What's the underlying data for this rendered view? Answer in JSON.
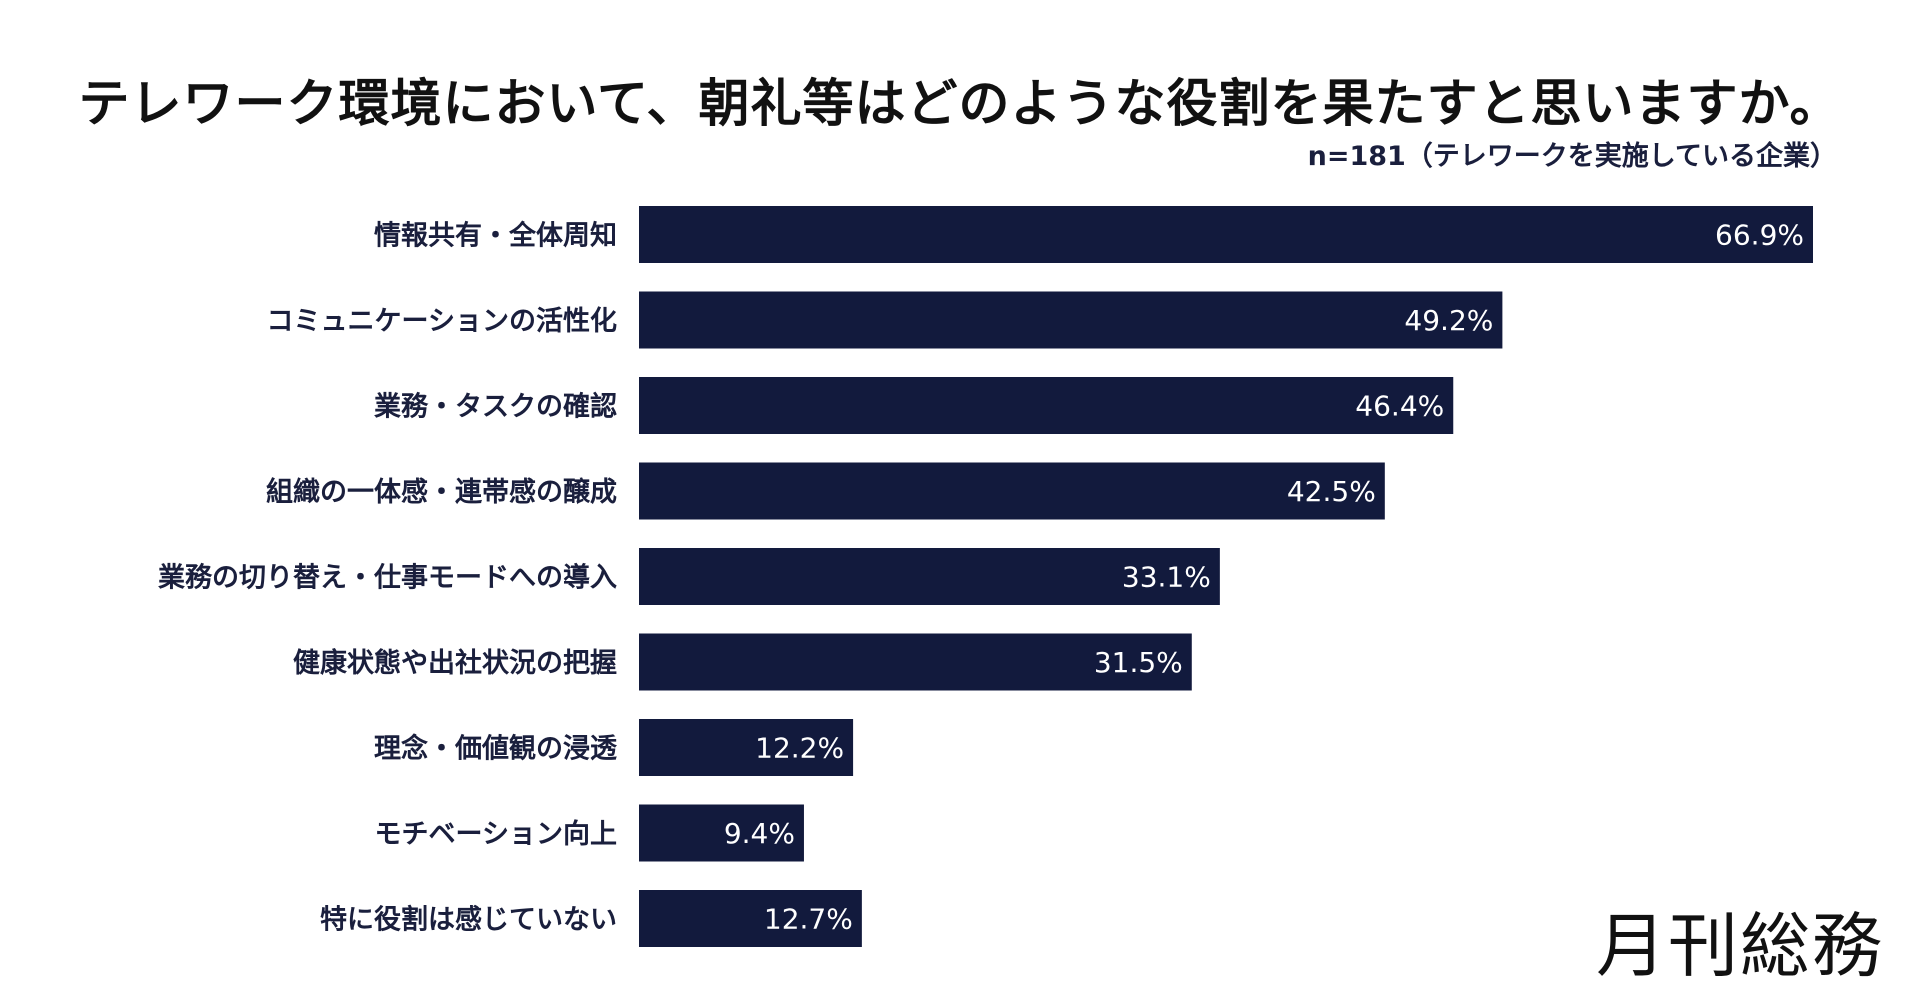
{
  "chart_data": {
    "type": "bar",
    "orientation": "horizontal",
    "title": "テレワーク環境において、朝礼等はどのような役割を果たすと思いますか。",
    "subtitle": "n=181（テレワークを実施している企業）",
    "categories": [
      "情報共有・全体周知",
      "コミュニケーションの活性化",
      "業務・タスクの確認",
      "組織の一体感・連帯感の醸成",
      "業務の切り替え・仕事モードへの導入",
      "健康状態や出社状況の把握",
      "理念・価値観の浸透",
      "モチベーション向上",
      "特に役割は感じていない"
    ],
    "values": [
      66.9,
      49.2,
      46.4,
      42.5,
      33.1,
      31.5,
      12.2,
      9.4,
      12.7
    ],
    "value_labels": [
      "66.9%",
      "49.2%",
      "46.4%",
      "42.5%",
      "33.1%",
      "31.5%",
      "12.2%",
      "9.4%",
      "12.7%"
    ],
    "unit": "%",
    "xlim": [
      0,
      66.9
    ],
    "xlabel": "",
    "ylabel": "",
    "grid": false,
    "legend": "none",
    "bar_color": "#121a3d",
    "label_color": "#ffffff"
  },
  "brand": {
    "logo_text": "月刊総務"
  }
}
